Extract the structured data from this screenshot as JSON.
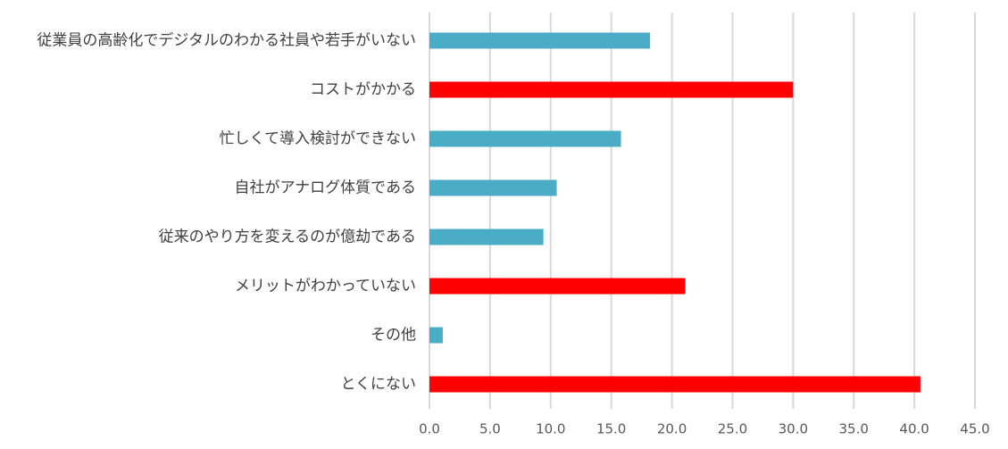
{
  "chart_data": {
    "type": "bar",
    "orientation": "horizontal",
    "categories": [
      "従業員の高齢化でデジタルのわかる社員や若手がいない",
      "コストがかかる",
      "忙しくて導入検討ができない",
      "自社がアナログ体質である",
      "従来のやり方を変えるのが億劫である",
      "メリットがわかっていない",
      "その他",
      "とくにない"
    ],
    "values": [
      18.2,
      30.0,
      15.8,
      10.5,
      9.4,
      21.1,
      1.1,
      40.5
    ],
    "colors": [
      "#4bacc6",
      "#ff0000",
      "#4bacc6",
      "#4bacc6",
      "#4bacc6",
      "#ff0000",
      "#4bacc6",
      "#ff0000"
    ],
    "xlim": [
      0,
      45
    ],
    "xticks": [
      {
        "value": 0,
        "label": "0.0"
      },
      {
        "value": 5,
        "label": "5.0"
      },
      {
        "value": 10,
        "label": "10.0"
      },
      {
        "value": 15,
        "label": "15.0"
      },
      {
        "value": 20,
        "label": "20.0"
      },
      {
        "value": 25,
        "label": "25.0"
      },
      {
        "value": 30,
        "label": "30.0"
      },
      {
        "value": 35,
        "label": "35.0"
      },
      {
        "value": 40,
        "label": "40.0"
      },
      {
        "value": 45,
        "label": "45.0"
      }
    ],
    "grid": true
  }
}
